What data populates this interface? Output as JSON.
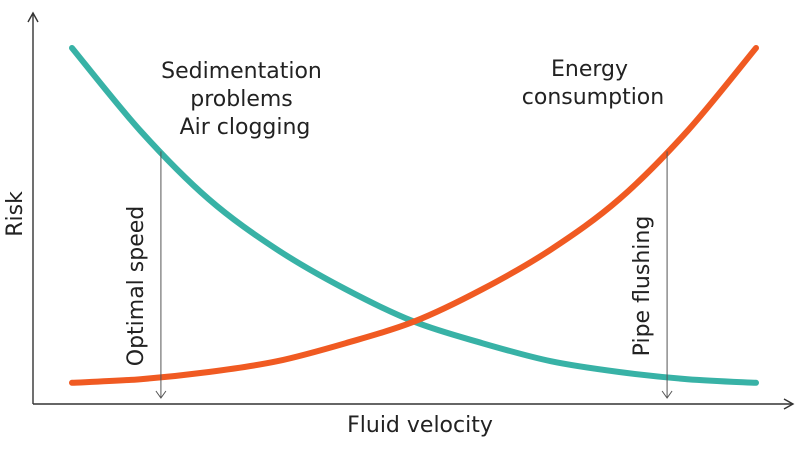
{
  "chart_data": {
    "type": "line",
    "title": "",
    "xlabel": "Fluid velocity",
    "ylabel": "Risk",
    "xlim": [
      0,
      1
    ],
    "ylim": [
      0,
      1
    ],
    "grid": false,
    "legend": "none",
    "series": [
      {
        "name": "",
        "color": "#38b2a6",
        "x": [
          0.0,
          0.1,
          0.2,
          0.3,
          0.4,
          0.5,
          0.6,
          0.7,
          0.8,
          0.9,
          1.0
        ],
        "y": [
          0.95,
          0.72,
          0.53,
          0.39,
          0.28,
          0.19,
          0.13,
          0.08,
          0.05,
          0.03,
          0.02
        ]
      },
      {
        "name": "",
        "color": "#f05a22",
        "x": [
          0.0,
          0.1,
          0.2,
          0.3,
          0.4,
          0.5,
          0.6,
          0.7,
          0.8,
          0.9,
          1.0
        ],
        "y": [
          0.02,
          0.03,
          0.05,
          0.08,
          0.13,
          0.19,
          0.28,
          0.39,
          0.53,
          0.72,
          0.95
        ]
      }
    ],
    "annotations": [
      {
        "id": "sed",
        "lines": [
          "Sedimentation",
          "problems",
          "Air clogging"
        ]
      },
      {
        "id": "energy",
        "lines": [
          "Energy",
          "consumption"
        ]
      }
    ],
    "markers": [
      {
        "id": "optimal",
        "label": "Optimal speed",
        "x": 0.13
      },
      {
        "id": "flushing",
        "label": "Pipe flushing",
        "x": 0.87
      }
    ]
  }
}
